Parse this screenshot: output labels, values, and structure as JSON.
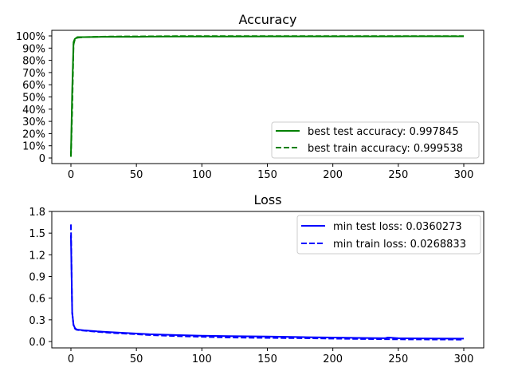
{
  "chart_data": [
    {
      "type": "line",
      "title": "Accuracy",
      "xlabel": "",
      "ylabel": "",
      "xlim": [
        0,
        300
      ],
      "ylim": [
        0,
        1.0
      ],
      "xticks": [
        0,
        50,
        100,
        150,
        200,
        250,
        300
      ],
      "xtick_labels": [
        "0",
        "50",
        "100",
        "150",
        "200",
        "250",
        "300"
      ],
      "yticks": [
        0,
        0.1,
        0.2,
        0.3,
        0.4,
        0.5,
        0.6,
        0.7,
        0.8,
        0.9,
        1.0
      ],
      "ytick_labels": [
        "0",
        "10%",
        "20%",
        "30%",
        "40%",
        "50%",
        "60%",
        "70%",
        "80%",
        "90%",
        "100%"
      ],
      "grid": false,
      "legend_position": "lower-right",
      "series": [
        {
          "name": "best test accuracy: 0.997845",
          "color": "#008000",
          "style": "solid",
          "x": [
            0,
            1,
            2,
            3,
            5,
            10,
            20,
            30,
            40,
            50,
            60,
            80,
            100,
            120,
            150,
            180,
            200,
            220,
            240,
            250,
            260,
            280,
            300
          ],
          "y": [
            0.02,
            0.55,
            0.95,
            0.975,
            0.99,
            0.99,
            0.992,
            0.993,
            0.993,
            0.993,
            0.994,
            0.995,
            0.995,
            0.995,
            0.996,
            0.996,
            0.996,
            0.996,
            0.996,
            0.996,
            0.997,
            0.997,
            0.997
          ]
        },
        {
          "name": "best train accuracy: 0.999538",
          "color": "#008000",
          "style": "dashed",
          "x": [
            0,
            1,
            2,
            3,
            5,
            10,
            20,
            30,
            40,
            50,
            60,
            80,
            100,
            120,
            150,
            180,
            200,
            220,
            240,
            250,
            260,
            280,
            300
          ],
          "y": [
            0.01,
            0.4,
            0.93,
            0.97,
            0.985,
            0.99,
            0.993,
            0.995,
            0.996,
            0.996,
            0.997,
            0.998,
            0.998,
            0.998,
            0.999,
            0.999,
            0.999,
            0.999,
            0.998,
            0.999,
            0.999,
            0.999,
            0.999
          ]
        }
      ]
    },
    {
      "type": "line",
      "title": "Loss",
      "xlabel": "",
      "ylabel": "",
      "xlim": [
        0,
        300
      ],
      "ylim": [
        0,
        1.8
      ],
      "xticks": [
        0,
        50,
        100,
        150,
        200,
        250,
        300
      ],
      "xtick_labels": [
        "0",
        "50",
        "100",
        "150",
        "200",
        "250",
        "300"
      ],
      "yticks": [
        0,
        0.3,
        0.6,
        0.9,
        1.2,
        1.5,
        1.8
      ],
      "ytick_labels": [
        "0.0",
        "0.3",
        "0.6",
        "0.9",
        "1.2",
        "1.5",
        "1.8"
      ],
      "grid": false,
      "legend_position": "upper-right",
      "series": [
        {
          "name": "min test loss: 0.0360273",
          "color": "#0000ff",
          "style": "solid",
          "x": [
            0,
            1,
            2,
            3,
            4,
            5,
            10,
            20,
            30,
            40,
            50,
            60,
            80,
            100,
            120,
            150,
            180,
            200,
            220,
            240,
            242,
            250,
            280,
            300
          ],
          "y": [
            1.47,
            0.4,
            0.23,
            0.19,
            0.17,
            0.165,
            0.155,
            0.14,
            0.13,
            0.12,
            0.11,
            0.1,
            0.09,
            0.08,
            0.075,
            0.07,
            0.06,
            0.055,
            0.05,
            0.045,
            0.055,
            0.045,
            0.042,
            0.04
          ]
        },
        {
          "name": "min train loss: 0.0268833",
          "color": "#0000ff",
          "style": "dashed",
          "x": [
            0,
            1,
            2,
            3,
            4,
            5,
            10,
            20,
            30,
            40,
            50,
            60,
            80,
            100,
            120,
            150,
            180,
            200,
            220,
            240,
            250,
            280,
            300
          ],
          "y": [
            1.62,
            0.4,
            0.22,
            0.18,
            0.165,
            0.16,
            0.15,
            0.135,
            0.12,
            0.11,
            0.1,
            0.09,
            0.075,
            0.065,
            0.055,
            0.05,
            0.045,
            0.04,
            0.035,
            0.032,
            0.03,
            0.028,
            0.027
          ]
        }
      ]
    }
  ]
}
